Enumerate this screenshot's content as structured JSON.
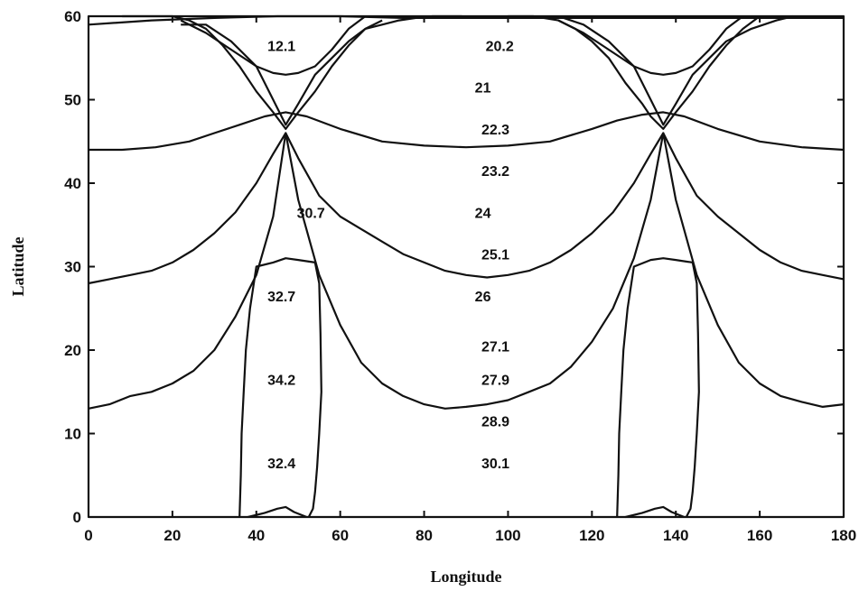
{
  "chart_data": {
    "type": "line",
    "title": "",
    "xlabel": "Longitude",
    "ylabel": "Latitude",
    "xlim": [
      0,
      180
    ],
    "ylim": [
      0,
      60
    ],
    "xticks": [
      "0",
      "20",
      "40",
      "60",
      "80",
      "100",
      "120",
      "140",
      "160",
      "180"
    ],
    "yticks": [
      "0",
      "10",
      "20",
      "30",
      "40",
      "50",
      "60"
    ],
    "grid": false,
    "legend": "none",
    "series": [
      {
        "x": [
          0,
          8,
          16,
          24,
          30,
          36,
          42,
          47,
          52,
          60,
          70,
          80,
          90,
          100,
          110,
          120,
          126,
          132,
          137,
          142,
          150,
          160,
          170,
          180
        ],
        "y": [
          44,
          44,
          44.3,
          45,
          46,
          47,
          48,
          48.5,
          48,
          46.5,
          45,
          44.5,
          44.3,
          44.5,
          45,
          46.5,
          47.5,
          48.2,
          48.5,
          48,
          46.5,
          45,
          44.3,
          44
        ]
      },
      {
        "x": [
          0,
          5,
          10,
          15,
          20,
          25,
          30,
          35,
          40,
          44,
          47,
          50,
          55,
          60,
          65,
          70,
          75,
          80,
          85,
          90,
          95,
          100,
          105,
          110,
          115,
          120,
          125,
          130,
          134,
          137,
          140,
          145,
          150,
          155,
          160,
          165,
          170,
          175,
          180
        ],
        "y": [
          28,
          28.5,
          29,
          29.5,
          30.5,
          32,
          34,
          36.5,
          40,
          43.5,
          46,
          43,
          38.5,
          36,
          34.5,
          33,
          31.5,
          30.5,
          29.5,
          29,
          28.7,
          29,
          29.5,
          30.5,
          32,
          34,
          36.5,
          40,
          43.5,
          46,
          43,
          38.5,
          36,
          34,
          32,
          30.5,
          29.5,
          29,
          28.5
        ]
      },
      {
        "x": [
          0,
          5,
          10,
          15,
          20,
          25,
          30,
          35,
          40,
          44,
          47,
          50,
          55,
          60,
          65,
          70,
          75,
          80,
          85,
          90,
          95,
          100,
          105,
          110,
          115,
          120,
          125,
          130,
          134,
          137,
          140,
          145,
          150,
          155,
          160,
          165,
          170,
          175,
          180
        ],
        "y": [
          13,
          13.5,
          14.5,
          15,
          16,
          17.5,
          20,
          24,
          29,
          36,
          46,
          38,
          29,
          23,
          18.5,
          16,
          14.5,
          13.5,
          13,
          13.2,
          13.5,
          14,
          15,
          16,
          18,
          21,
          25,
          31,
          38,
          46,
          38,
          29,
          23,
          18.5,
          16,
          14.5,
          13.8,
          13.2,
          13.5
        ]
      },
      {
        "x": [
          22,
          28,
          34,
          40,
          44,
          47,
          50,
          54,
          58,
          62,
          66,
          70,
          74,
          78,
          82,
          86,
          89
        ],
        "y": [
          59,
          59,
          57,
          54,
          50,
          47,
          49.5,
          53,
          55,
          57,
          58.5,
          59,
          59.5,
          59.8,
          60,
          60,
          60
        ]
      },
      {
        "x": [
          22,
          28,
          34,
          40,
          44,
          47,
          50,
          54,
          58,
          62,
          66
        ],
        "y": [
          59.5,
          58,
          56,
          54,
          53.2,
          53,
          53.2,
          54,
          56,
          58.5,
          60
        ]
      },
      {
        "x": [
          8,
          14,
          20,
          24,
          28,
          32,
          36,
          40,
          44,
          47,
          50,
          54,
          58,
          62,
          66,
          70
        ],
        "y": [
          60,
          60,
          60,
          59.5,
          58.5,
          56.5,
          54,
          51,
          48.5,
          46.5,
          48.5,
          51,
          54,
          56.5,
          58.5,
          59.5
        ]
      },
      {
        "x": [
          112,
          118,
          124,
          130,
          134,
          137,
          140,
          144,
          148,
          152,
          158,
          164,
          168
        ],
        "y": [
          60,
          59,
          57,
          54,
          50,
          47,
          49.5,
          53,
          55,
          57,
          58.5,
          59.5,
          60
        ]
      },
      {
        "x": [
          112,
          118,
          124,
          130,
          134,
          137,
          140,
          144,
          148,
          152,
          156
        ],
        "y": [
          59.5,
          58,
          56,
          54,
          53.2,
          53,
          53.2,
          54,
          56,
          58.5,
          60
        ]
      },
      {
        "x": [
          100,
          106,
          112,
          116,
          120,
          124,
          128,
          132,
          134,
          137,
          140,
          144,
          148,
          152,
          156,
          160
        ],
        "y": [
          60,
          60,
          59.5,
          58.5,
          57,
          55,
          52,
          49.5,
          48,
          46.5,
          48.5,
          51,
          54,
          56.5,
          58.5,
          60
        ]
      },
      {
        "x": [
          36,
          36.3,
          36.5,
          37,
          37.5,
          38.5,
          40,
          44,
          47,
          50,
          54,
          55,
          55.3,
          55.5,
          55,
          54.5,
          54,
          53.5,
          52.5
        ],
        "y": [
          0,
          5,
          10,
          15,
          20,
          25,
          30,
          30.5,
          31,
          30.8,
          30.5,
          28,
          22,
          15,
          10,
          6,
          3,
          1,
          0
        ]
      },
      {
        "x": [
          126,
          126.3,
          126.5,
          127,
          127.5,
          128.5,
          130,
          134,
          137,
          140,
          144,
          145,
          145.3,
          145.5,
          145,
          144.5,
          144,
          143.5,
          142.5
        ],
        "y": [
          0,
          5,
          10,
          15,
          20,
          25,
          30,
          30.8,
          31,
          30.8,
          30.5,
          28,
          22,
          15,
          10,
          6,
          3,
          1,
          0
        ]
      },
      {
        "x": [
          0,
          15,
          30,
          45,
          60,
          75,
          90,
          105,
          120,
          135,
          150,
          165,
          180
        ],
        "y": [
          59,
          59.5,
          59.8,
          60,
          60,
          59.8,
          59.8,
          59.8,
          59.8,
          59.8,
          59.8,
          59.8,
          59.8
        ]
      },
      {
        "x": [
          38,
          42,
          45,
          47,
          49,
          52
        ],
        "y": [
          0,
          0.5,
          1,
          1.2,
          0.6,
          0
        ]
      },
      {
        "x": [
          128,
          132,
          135,
          137,
          139,
          142
        ],
        "y": [
          0,
          0.5,
          1,
          1.2,
          0.6,
          0
        ]
      }
    ],
    "annotations": [
      {
        "text": "12.1",
        "x": 46,
        "y": 56.5
      },
      {
        "text": "20.2",
        "x": 98,
        "y": 56.5
      },
      {
        "text": "21",
        "x": 94,
        "y": 51.5
      },
      {
        "text": "22.3",
        "x": 97,
        "y": 46.5
      },
      {
        "text": "23.2",
        "x": 97,
        "y": 41.5
      },
      {
        "text": "30.7",
        "x": 53,
        "y": 36.5
      },
      {
        "text": "24",
        "x": 94,
        "y": 36.5
      },
      {
        "text": "25.1",
        "x": 97,
        "y": 31.5
      },
      {
        "text": "32.7",
        "x": 46,
        "y": 26.5
      },
      {
        "text": "26",
        "x": 94,
        "y": 26.5
      },
      {
        "text": "27.1",
        "x": 97,
        "y": 20.5
      },
      {
        "text": "34.2",
        "x": 46,
        "y": 16.5
      },
      {
        "text": "27.9",
        "x": 97,
        "y": 16.5
      },
      {
        "text": "28.9",
        "x": 97,
        "y": 11.5
      },
      {
        "text": "32.4",
        "x": 46,
        "y": 6.5
      },
      {
        "text": "30.1",
        "x": 97,
        "y": 6.5
      }
    ]
  }
}
